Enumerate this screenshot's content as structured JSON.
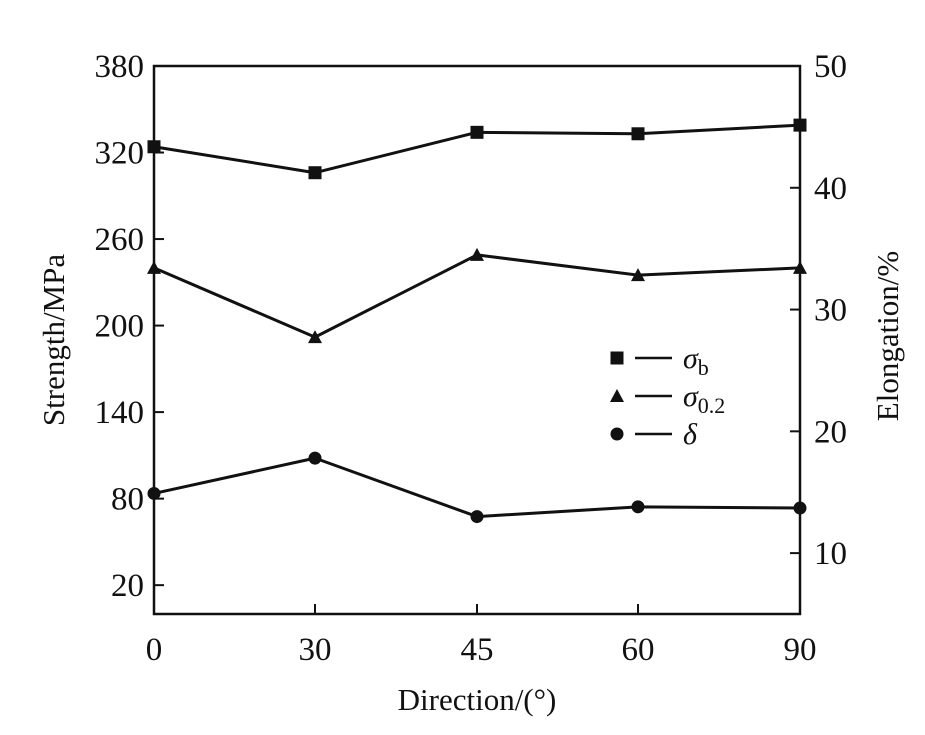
{
  "chart_data": {
    "type": "line",
    "x": [
      0,
      30,
      45,
      60,
      90
    ],
    "x_tick_labels": [
      "0",
      "30",
      "45",
      "60",
      "90"
    ],
    "xlabel": "Direction/(°)",
    "ylabel_left": "Strength/MPa",
    "ylabel_right": "Elongation/%",
    "ylim_left": [
      0,
      380
    ],
    "ylim_right": [
      5,
      50
    ],
    "yticks_left": [
      20,
      80,
      140,
      200,
      260,
      320,
      380
    ],
    "yticks_right": [
      10,
      20,
      30,
      40,
      50
    ],
    "grid": false,
    "legend_position": "right-center",
    "series": [
      {
        "name": "σb",
        "symbol": "σ",
        "subscript": "b",
        "marker": "square",
        "axis": "left",
        "values": [
          324,
          306,
          334,
          333,
          339
        ]
      },
      {
        "name": "σ0.2",
        "symbol": "σ",
        "subscript": "0.2",
        "marker": "triangle",
        "axis": "left",
        "values": [
          240,
          192,
          249,
          235,
          240
        ]
      },
      {
        "name": "δ",
        "symbol": "δ",
        "subscript": "",
        "marker": "circle",
        "axis": "right",
        "values": [
          14.9,
          17.8,
          13.0,
          13.8,
          13.7
        ]
      }
    ],
    "colors": {
      "line": "#111111",
      "marker": "#111111",
      "axis": "#111111"
    }
  }
}
